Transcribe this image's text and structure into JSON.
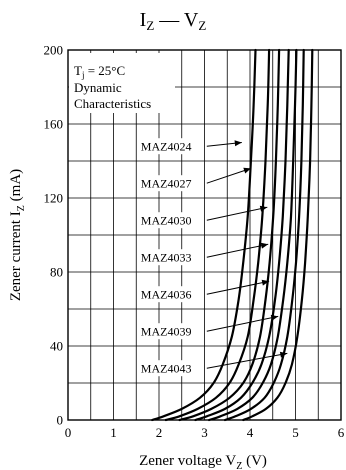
{
  "chart_data": {
    "type": "line",
    "title": {
      "main": "I",
      "sub1": "Z",
      "dash": " — ",
      "main2": "V",
      "sub2": "Z"
    },
    "xlabel": {
      "prefix": "Zener voltage  V",
      "sub": "Z",
      "suffix": "  (V)"
    },
    "ylabel": {
      "prefix": "Zener current  I",
      "sub": "Z",
      "suffix": "  (mA)"
    },
    "xlim": [
      0,
      6
    ],
    "ylim": [
      0,
      200
    ],
    "x_grid_step": 0.5,
    "y_grid_step": 20,
    "x_ticks": [
      0,
      1,
      2,
      3,
      4,
      5,
      6
    ],
    "x_tick_labels": [
      "0",
      "1",
      "2",
      "3",
      "4",
      "5",
      "6"
    ],
    "y_ticks": [
      0,
      40,
      80,
      120,
      160,
      200
    ],
    "y_tick_labels": [
      "0",
      "40",
      "80",
      "120",
      "160",
      "200"
    ],
    "grid": true,
    "conditions": {
      "line1_prefix": "T",
      "line1_sub": "j",
      "line1_suffix": " = 25°C",
      "line2": "Dynamic",
      "line3": "Characteristics"
    },
    "series": [
      {
        "name": "MAZ4024",
        "points": [
          [
            1.85,
            0
          ],
          [
            2.1,
            2
          ],
          [
            2.5,
            6
          ],
          [
            2.9,
            12
          ],
          [
            3.2,
            20
          ],
          [
            3.4,
            30
          ],
          [
            3.6,
            45
          ],
          [
            3.75,
            65
          ],
          [
            3.85,
            85
          ],
          [
            3.95,
            110
          ],
          [
            4.02,
            140
          ],
          [
            4.08,
            170
          ],
          [
            4.12,
            200
          ]
        ],
        "label_at": [
          1.6,
          148
        ],
        "arrow_to": [
          3.82,
          150
        ]
      },
      {
        "name": "MAZ4027",
        "points": [
          [
            2.15,
            0
          ],
          [
            2.45,
            2
          ],
          [
            2.85,
            6
          ],
          [
            3.25,
            12
          ],
          [
            3.55,
            20
          ],
          [
            3.75,
            30
          ],
          [
            3.95,
            45
          ],
          [
            4.08,
            65
          ],
          [
            4.18,
            85
          ],
          [
            4.27,
            110
          ],
          [
            4.34,
            140
          ],
          [
            4.39,
            170
          ],
          [
            4.42,
            200
          ]
        ],
        "label_at": [
          1.6,
          128
        ],
        "arrow_to": [
          4.02,
          136
        ]
      },
      {
        "name": "MAZ4030",
        "points": [
          [
            2.45,
            0
          ],
          [
            2.75,
            2
          ],
          [
            3.15,
            6
          ],
          [
            3.55,
            12
          ],
          [
            3.85,
            20
          ],
          [
            4.05,
            30
          ],
          [
            4.22,
            45
          ],
          [
            4.34,
            65
          ],
          [
            4.43,
            85
          ],
          [
            4.51,
            110
          ],
          [
            4.57,
            140
          ],
          [
            4.61,
            170
          ],
          [
            4.64,
            200
          ]
        ],
        "label_at": [
          1.6,
          108
        ],
        "arrow_to": [
          4.38,
          115
        ]
      },
      {
        "name": "MAZ4033",
        "points": [
          [
            2.8,
            0
          ],
          [
            3.05,
            2
          ],
          [
            3.45,
            6
          ],
          [
            3.8,
            12
          ],
          [
            4.05,
            20
          ],
          [
            4.25,
            30
          ],
          [
            4.42,
            45
          ],
          [
            4.55,
            65
          ],
          [
            4.64,
            85
          ],
          [
            4.72,
            110
          ],
          [
            4.78,
            140
          ],
          [
            4.82,
            170
          ],
          [
            4.85,
            200
          ]
        ],
        "label_at": [
          1.6,
          88
        ],
        "arrow_to": [
          4.4,
          95
        ]
      },
      {
        "name": "MAZ4036",
        "points": [
          [
            3.1,
            0
          ],
          [
            3.35,
            2
          ],
          [
            3.72,
            6
          ],
          [
            4.05,
            12
          ],
          [
            4.28,
            20
          ],
          [
            4.46,
            30
          ],
          [
            4.61,
            45
          ],
          [
            4.73,
            65
          ],
          [
            4.82,
            85
          ],
          [
            4.9,
            110
          ],
          [
            4.95,
            140
          ],
          [
            4.99,
            170
          ],
          [
            5.02,
            200
          ]
        ],
        "label_at": [
          1.6,
          68
        ],
        "arrow_to": [
          4.42,
          75
        ]
      },
      {
        "name": "MAZ4039",
        "points": [
          [
            3.45,
            0
          ],
          [
            3.68,
            2
          ],
          [
            4.02,
            6
          ],
          [
            4.32,
            12
          ],
          [
            4.52,
            20
          ],
          [
            4.68,
            30
          ],
          [
            4.82,
            45
          ],
          [
            4.93,
            65
          ],
          [
            5.01,
            85
          ],
          [
            5.08,
            110
          ],
          [
            5.13,
            140
          ],
          [
            5.16,
            170
          ],
          [
            5.18,
            200
          ]
        ],
        "label_at": [
          1.6,
          48
        ],
        "arrow_to": [
          4.62,
          56
        ]
      },
      {
        "name": "MAZ4043",
        "points": [
          [
            3.85,
            0
          ],
          [
            4.05,
            2
          ],
          [
            4.35,
            6
          ],
          [
            4.6,
            12
          ],
          [
            4.78,
            20
          ],
          [
            4.92,
            30
          ],
          [
            5.04,
            45
          ],
          [
            5.14,
            65
          ],
          [
            5.21,
            85
          ],
          [
            5.27,
            110
          ],
          [
            5.32,
            140
          ],
          [
            5.35,
            170
          ],
          [
            5.37,
            200
          ]
        ],
        "label_at": [
          1.6,
          28
        ],
        "arrow_to": [
          4.82,
          36
        ]
      }
    ]
  }
}
